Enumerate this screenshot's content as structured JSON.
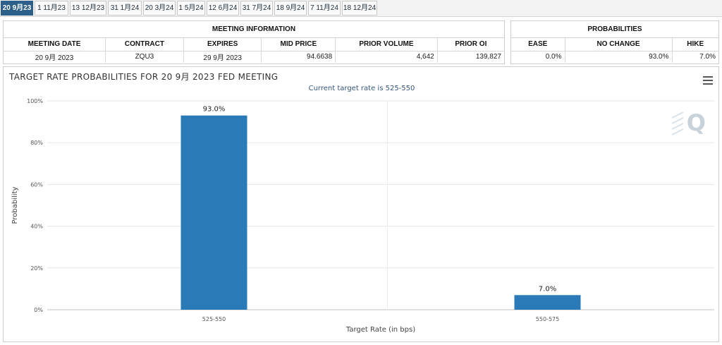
{
  "tabs": [
    {
      "label": "20 9月23",
      "active": true
    },
    {
      "label": "1 11月23",
      "active": false
    },
    {
      "label": "13 12月23",
      "active": false
    },
    {
      "label": "31 1月24",
      "active": false
    },
    {
      "label": "20 3月24",
      "active": false
    },
    {
      "label": "1 5月24",
      "active": false
    },
    {
      "label": "12 6月24",
      "active": false
    },
    {
      "label": "31 7月24",
      "active": false
    },
    {
      "label": "18 9月24",
      "active": false
    },
    {
      "label": "7 11月24",
      "active": false
    },
    {
      "label": "18 12月24",
      "active": false
    }
  ],
  "meeting_info": {
    "title": "MEETING INFORMATION",
    "headers": [
      "MEETING DATE",
      "CONTRACT",
      "EXPIRES",
      "MID PRICE",
      "PRIOR VOLUME",
      "PRIOR OI"
    ],
    "row": [
      "20 9月 2023",
      "ZQU3",
      "29 9月 2023",
      "94.6638",
      "4,642",
      "139,827"
    ]
  },
  "probabilities": {
    "title": "PROBABILITIES",
    "headers": [
      "EASE",
      "NO CHANGE",
      "HIKE"
    ],
    "row": [
      "0.0%",
      "93.0%",
      "7.0%"
    ]
  },
  "menu_icon": "hamburger-menu-icon",
  "watermark_icon": "q-logo-icon",
  "colors": {
    "bar": "#2a7ab8",
    "tab_active": "#2c5f8a"
  },
  "chart_data": {
    "type": "bar",
    "title": "TARGET RATE PROBABILITIES FOR 20 9月 2023 FED MEETING",
    "subtitle": "Current target rate is 525-550",
    "categories": [
      "525-550",
      "550-575"
    ],
    "values": [
      93.0,
      7.0
    ],
    "data_labels": [
      "93.0%",
      "7.0%"
    ],
    "xlabel": "Target Rate (in bps)",
    "ylabel": "Probability",
    "ylim": [
      0,
      100
    ],
    "yticks": [
      0,
      20,
      40,
      60,
      80,
      100
    ],
    "ytick_labels": [
      "0%",
      "20%",
      "40%",
      "60%",
      "80%",
      "100%"
    ],
    "grid": true,
    "legend": false
  }
}
